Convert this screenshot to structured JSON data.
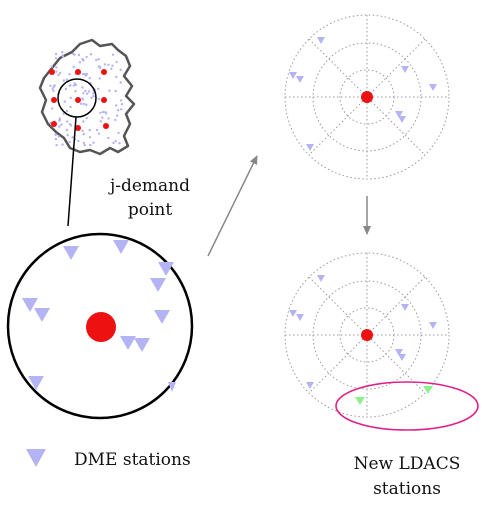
{
  "labels": {
    "demand_point_line1": "j-demand",
    "demand_point_line2": "point",
    "legend_dme": "DME stations",
    "ldacs_line1": "New LDACS",
    "ldacs_line2": "stations"
  },
  "colors": {
    "dme": "#b4b4f5",
    "demand_point": "#ee1111",
    "ldacs": "#8fef8f",
    "ldacs_ellipse": "#e0208a",
    "map_outline": "#555555",
    "grid": "#9a9a9a",
    "arrow": "#888888"
  },
  "icons": {
    "dme_marker": "triangle-down-icon",
    "demand_marker": "dot-icon"
  }
}
